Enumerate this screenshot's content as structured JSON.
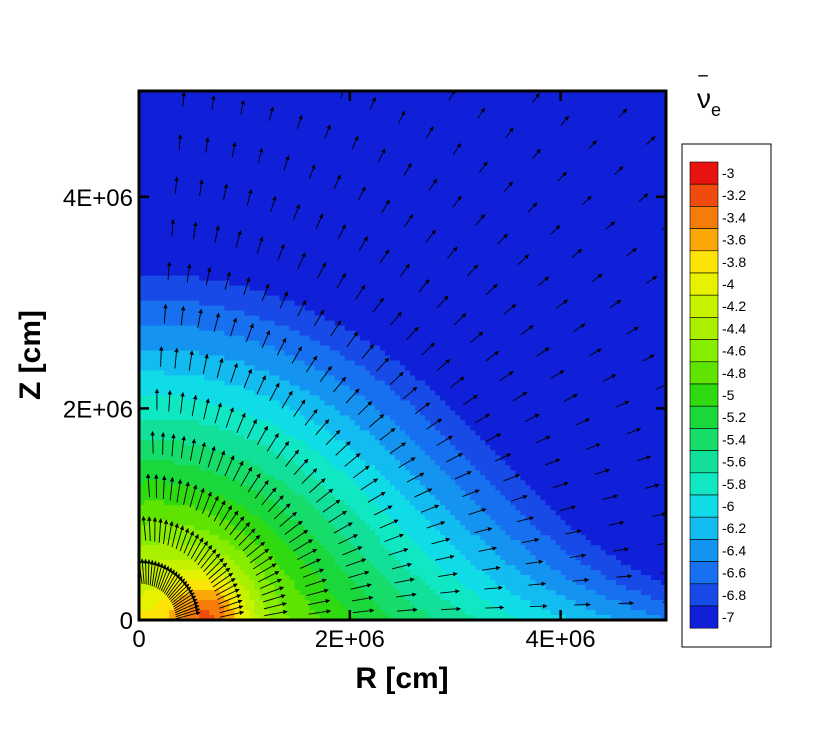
{
  "chart_data": {
    "type": "heatmap",
    "subtype": "filled-contour-with-vector-field",
    "title": "",
    "xlabel": "R [cm]",
    "ylabel": "Z [cm]",
    "xlim": [
      0,
      5000000
    ],
    "ylim": [
      0,
      5000000
    ],
    "x_ticks": [
      {
        "value": 0,
        "label": "0"
      },
      {
        "value": 2000000,
        "label": "2E+06"
      },
      {
        "value": 4000000,
        "label": "4E+06"
      }
    ],
    "y_ticks": [
      {
        "value": 0,
        "label": "0"
      },
      {
        "value": 2000000,
        "label": "2E+06"
      },
      {
        "value": 4000000,
        "label": "4E+06"
      }
    ],
    "grid": false,
    "legend": {
      "placement": "right",
      "symbol_main": "ν",
      "symbol_bar": "‾",
      "symbol_sub": "e",
      "levels": [
        -3,
        -3.2,
        -3.4,
        -3.6,
        -3.8,
        -4,
        -4.2,
        -4.4,
        -4.6,
        -4.8,
        -5,
        -5.2,
        -5.4,
        -5.6,
        -5.8,
        -6,
        -6.2,
        -6.4,
        -6.6,
        -6.8,
        -7
      ],
      "level_labels": [
        "-3",
        "-3.2",
        "-3.4",
        "-3.6",
        "-3.8",
        "-4",
        "-4.2",
        "-4.4",
        "-4.6",
        "-4.8",
        "-5",
        "-5.2",
        "-5.4",
        "-5.6",
        "-5.8",
        "-6",
        "-6.2",
        "-6.4",
        "-6.6",
        "-6.8",
        "-7"
      ],
      "colors": [
        "#e8120e",
        "#f04a0c",
        "#f67c0a",
        "#fba708",
        "#fde406",
        "#e6f200",
        "#c6f200",
        "#a8f000",
        "#86ec00",
        "#5ee400",
        "#30da10",
        "#1ad83c",
        "#16dc6a",
        "#12e098",
        "#10e8c4",
        "#10dce8",
        "#12bcf0",
        "#1494f0",
        "#1670f0",
        "#184ae8",
        "#1020d8"
      ]
    },
    "field": {
      "description_free": true,
      "value_min": -7,
      "value_max": -3,
      "core_region_max": -3.8,
      "hotspot_value": -3
    }
  }
}
